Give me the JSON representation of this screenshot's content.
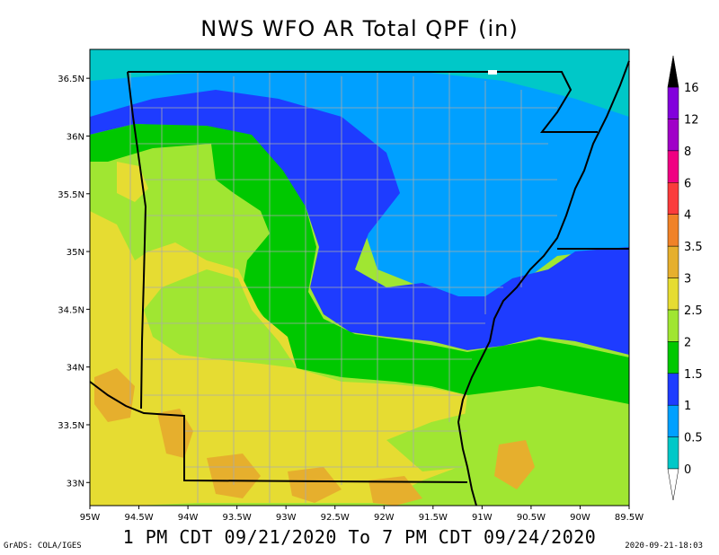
{
  "title": "NWS WFO AR Total QPF (in)",
  "subtitle": "1 PM CDT 09/21/2020 To 7 PM CDT 09/24/2020",
  "credit": "GrADS: COLA/IGES",
  "timestamp": "2020-09-21-18:03",
  "axes": {
    "lat_labels": [
      "36.5N",
      "36N",
      "35.5N",
      "35N",
      "34.5N",
      "34N",
      "33.5N",
      "33N"
    ],
    "lon_labels": [
      "95W",
      "94.5W",
      "94W",
      "93.5W",
      "93W",
      "92.5W",
      "92W",
      "91.5W",
      "91W",
      "90.5W",
      "90W",
      "89.5W"
    ],
    "lat_range": [
      32.8,
      36.75
    ],
    "lon_range": [
      -95.0,
      -89.5
    ]
  },
  "legend": {
    "levels": [
      "0",
      "0.5",
      "1",
      "1.5",
      "2",
      "2.5",
      "3",
      "3.5",
      "4",
      "6",
      "8",
      "12",
      "16"
    ],
    "colors": [
      "#00c8c8",
      "#00a0ff",
      "#1e3cff",
      "#00c800",
      "#a0e632",
      "#e6dc32",
      "#e6af2d",
      "#f08228",
      "#fa3c3c",
      "#f00082",
      "#a000c8",
      "#8200dc",
      "#000000"
    ]
  },
  "palette": {
    "land_green": "#00c800",
    "land_lime": "#a0e632",
    "land_yellow": "#e6dc32",
    "land_gold": "#e6af2d",
    "rain_blue": "#1e3cff",
    "rain_light_blue": "#00a0ff",
    "rain_teal": "#00c8c8",
    "state_line": "#000000",
    "county_line": "#aaaaaa"
  }
}
